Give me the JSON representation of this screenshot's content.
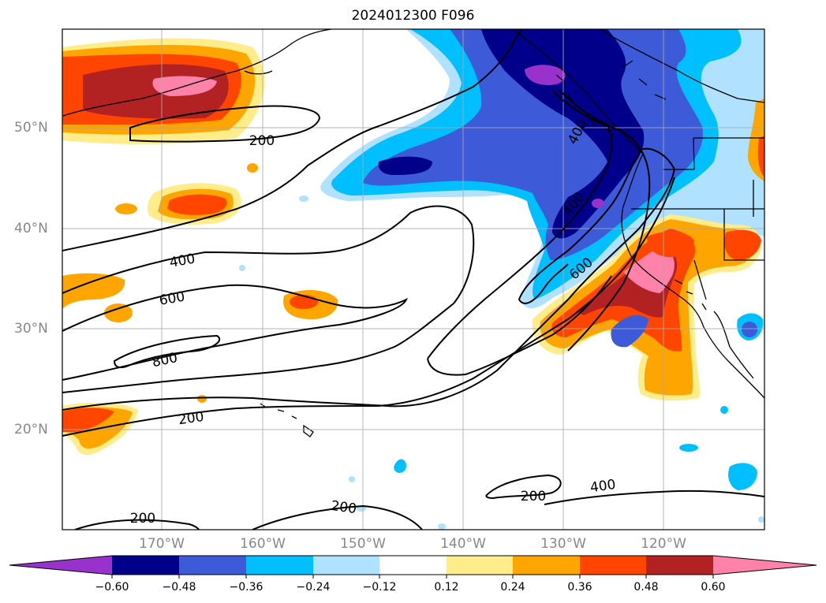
{
  "title": "2024012300 F096",
  "map": {
    "lon_labels": [
      "170°W",
      "160°W",
      "150°W",
      "140°W",
      "130°W",
      "120°W"
    ],
    "lat_labels": [
      "50°N",
      "40°N",
      "30°N",
      "20°N"
    ],
    "contour_labels": [
      "200",
      "400",
      "600",
      "800",
      "200",
      "200",
      "200",
      "200",
      "400",
      "400",
      "600"
    ]
  },
  "colorbar": {
    "tick_labels": [
      "−0.60",
      "−0.48",
      "−0.36",
      "−0.24",
      "−0.12",
      "0.12",
      "0.24",
      "0.36",
      "0.48",
      "0.60"
    ],
    "colors": [
      "#9932cc",
      "#00008b",
      "#3d5bd9",
      "#00bfff",
      "#b0e2ff",
      "#ffffff",
      "#ffec8b",
      "#ffa500",
      "#ff4500",
      "#b22222",
      "#ff82ab"
    ]
  }
}
